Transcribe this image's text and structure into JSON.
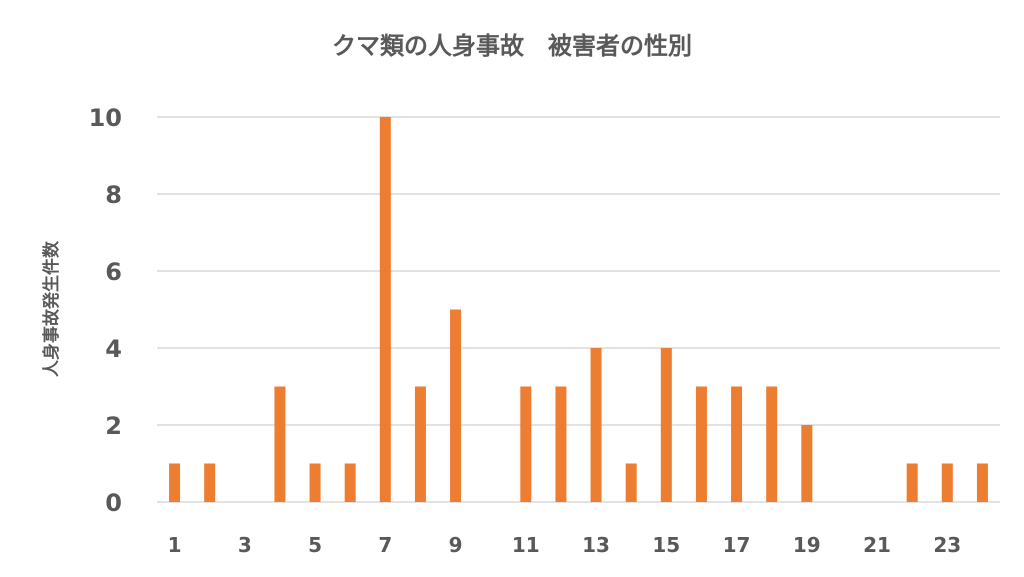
{
  "chart_data": {
    "type": "bar",
    "title": "クマ類の人身事故　被害者の性別",
    "ylabel": "人身事故発生件数",
    "xlabel": "",
    "categories": [
      1,
      2,
      3,
      4,
      5,
      6,
      7,
      8,
      9,
      10,
      11,
      12,
      13,
      14,
      15,
      16,
      17,
      18,
      19,
      20,
      21,
      22,
      23,
      24
    ],
    "x_tick_labels": [
      "1",
      "3",
      "5",
      "7",
      "9",
      "11",
      "13",
      "15",
      "17",
      "19",
      "21",
      "23"
    ],
    "y_tick_labels": [
      "0",
      "2",
      "4",
      "6",
      "8",
      "10"
    ],
    "series": [
      {
        "values": [
          1,
          1,
          0,
          3,
          1,
          1,
          10,
          3,
          5,
          0,
          3,
          3,
          4,
          1,
          4,
          3,
          3,
          3,
          2,
          0,
          0,
          1,
          1,
          1
        ]
      }
    ],
    "ylim": [
      0,
      10
    ],
    "grid": true,
    "bar_color": "#ED7D31"
  }
}
